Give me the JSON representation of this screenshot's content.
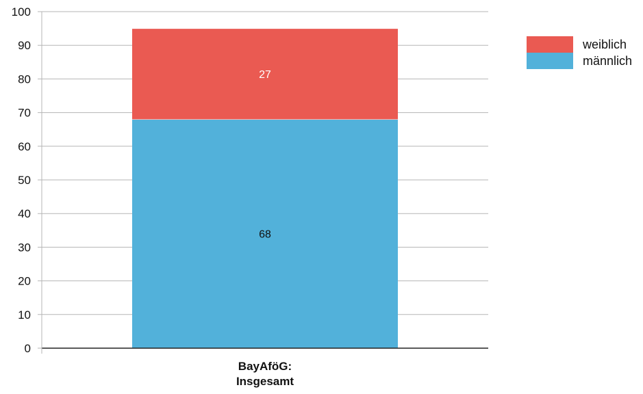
{
  "chart_data": {
    "type": "bar",
    "stacked": true,
    "categories": [
      "BayAföG:\nInsgesamt"
    ],
    "series": [
      {
        "name": "männlich",
        "values": [
          68
        ],
        "color": "#52b1da",
        "label_color": "#111111"
      },
      {
        "name": "weiblich",
        "values": [
          27
        ],
        "color": "#ea5a52",
        "label_color": "#ffffff"
      }
    ],
    "ylim": [
      0,
      100
    ],
    "yticks": [
      0,
      10,
      20,
      30,
      40,
      50,
      60,
      70,
      80,
      90,
      100
    ],
    "grid": true,
    "legend_position": "top-right",
    "legend_order": [
      "weiblich",
      "männlich"
    ]
  }
}
